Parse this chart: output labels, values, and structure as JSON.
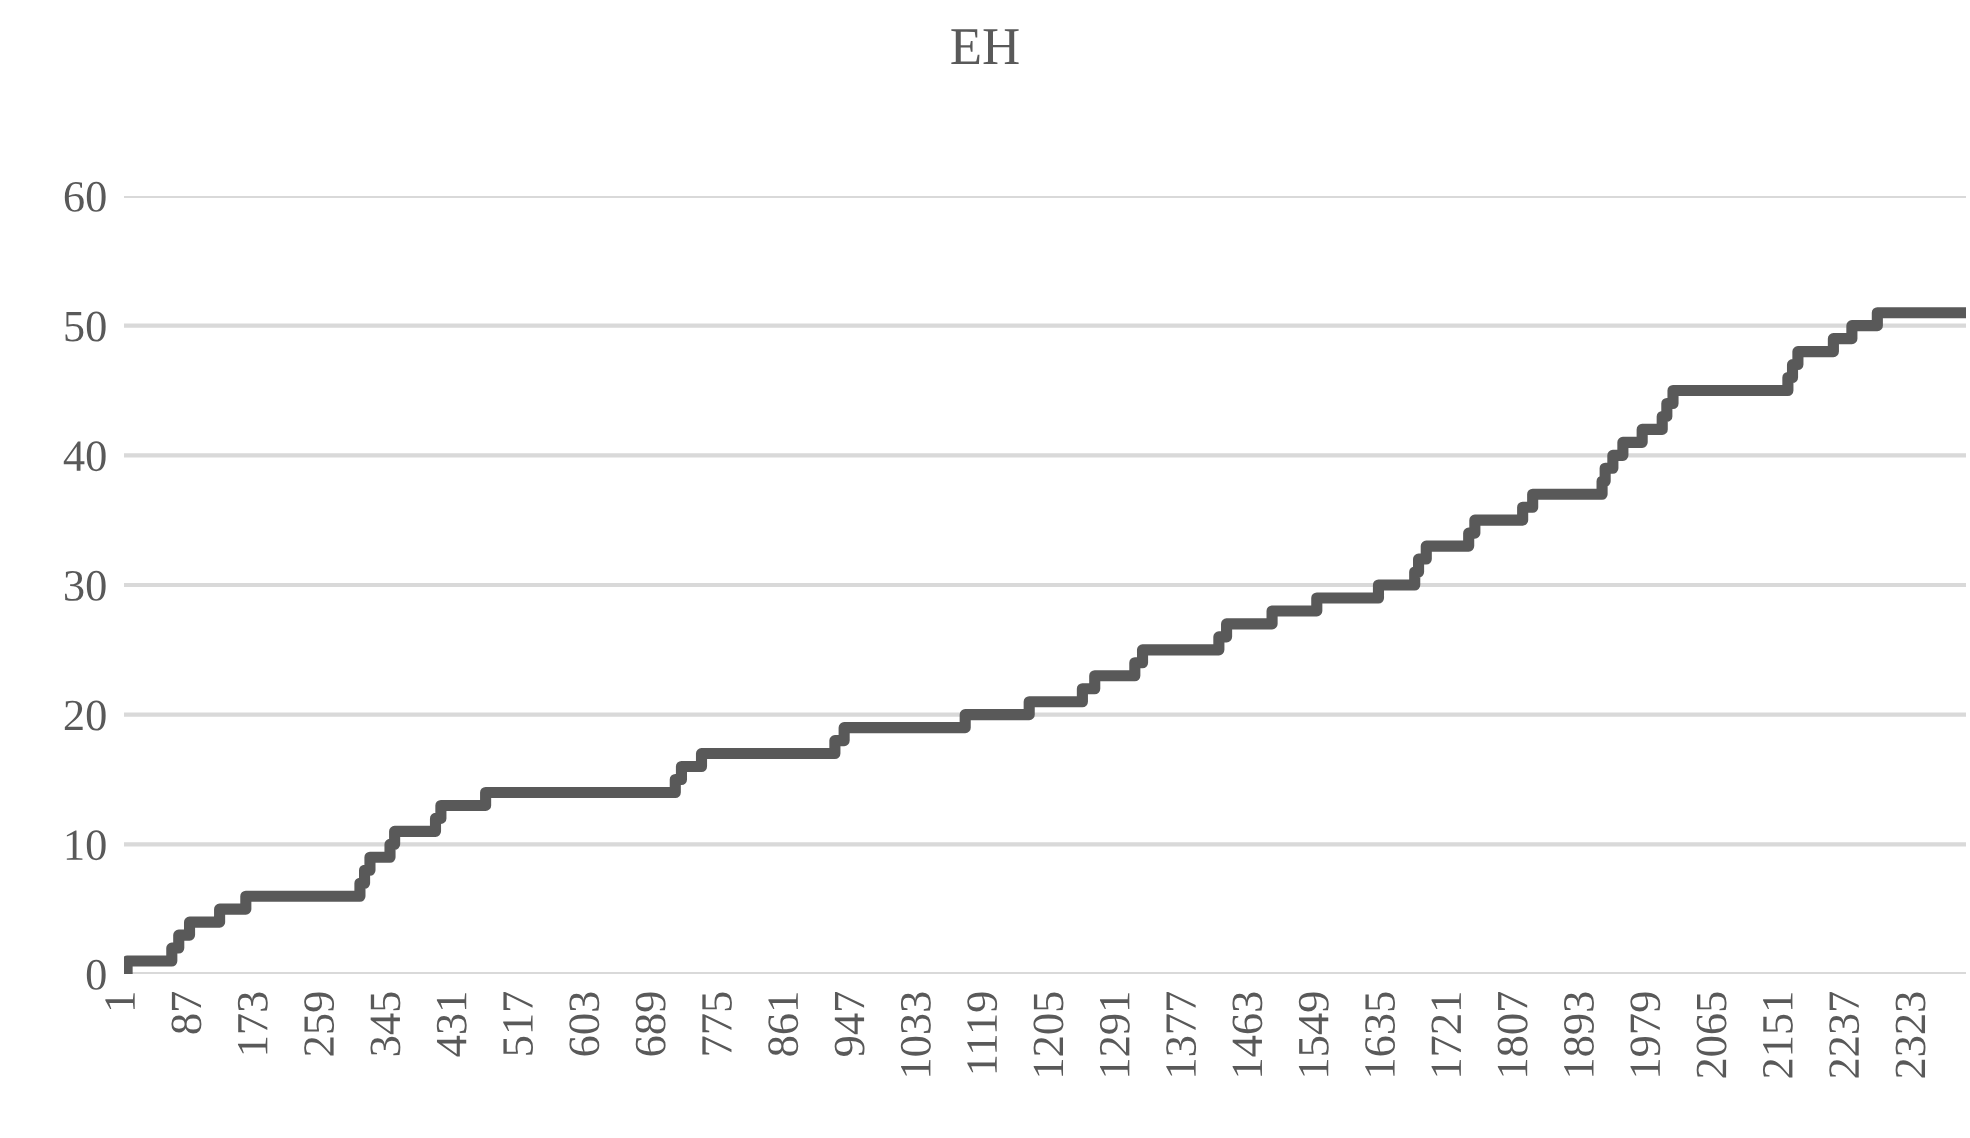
{
  "chart_data": {
    "type": "step",
    "title": "EH",
    "x": [
      1,
      5,
      63,
      72,
      86,
      125,
      159,
      307,
      313,
      320,
      346,
      352,
      405,
      412,
      470,
      716,
      724,
      750,
      923,
      935,
      1092,
      1175,
      1244,
      1260,
      1312,
      1322,
      1421,
      1431,
      1490,
      1548,
      1628,
      1675,
      1680,
      1690,
      1745,
      1753,
      1815,
      1828,
      1918,
      1922,
      1932,
      1945,
      1970,
      1996,
      2002,
      2010,
      2159,
      2165,
      2172,
      2218,
      2242,
      2275,
      2387
    ],
    "series": [
      {
        "color": "#595959",
        "values": [
          0,
          1,
          2,
          3,
          4,
          5,
          6,
          7,
          8,
          9,
          10,
          11,
          12,
          13,
          14,
          15,
          16,
          17,
          18,
          19,
          20,
          21,
          22,
          23,
          24,
          25,
          26,
          27,
          28,
          29,
          30,
          31,
          32,
          33,
          34,
          35,
          36,
          37,
          38,
          39,
          40,
          41,
          42,
          43,
          44,
          45,
          46,
          47,
          48,
          49,
          50,
          51,
          51
        ]
      }
    ],
    "xlim": [
      1,
      2390
    ],
    "xticks": [
      1,
      87,
      173,
      259,
      345,
      431,
      517,
      603,
      689,
      775,
      861,
      947,
      1033,
      1119,
      1205,
      1291,
      1377,
      1463,
      1549,
      1635,
      1721,
      1807,
      1893,
      1979,
      2065,
      2151,
      2237,
      2323
    ],
    "ylim": [
      0,
      60
    ],
    "yticks": [
      0,
      10,
      20,
      30,
      40,
      50,
      60
    ],
    "grid": "y",
    "legend": false,
    "line_style": "solid",
    "marker": "none"
  }
}
